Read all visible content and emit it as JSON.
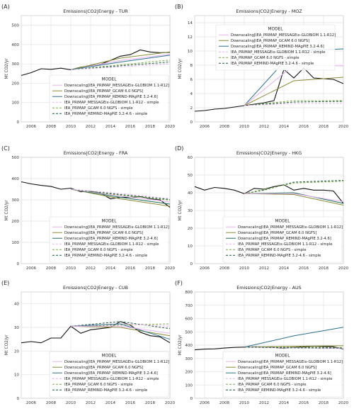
{
  "figure": {
    "ylabel": "Mt CO2/yr",
    "legend_title": "MODEL"
  },
  "colors": {
    "msg": "#e7b4f0",
    "gcam": "#8c8b3a",
    "remind": "#2e6f8e",
    "cube": "#1f6f5c",
    "iea_gcam": "#7fa84a",
    "iea_remind": "#1e5a3a",
    "hist": "#111111",
    "grid": "#e3e3e3",
    "frame": "#cfcfcf"
  },
  "chart_data": [
    {
      "type": "line",
      "panel_label": "(A)",
      "title": "Emissions|CO2|Energy - TUR",
      "xlim": [
        2005,
        2020
      ],
      "ylim": [
        0,
        550
      ],
      "xticks": [
        2006,
        2008,
        2010,
        2012,
        2014,
        2016,
        2018,
        2020
      ],
      "yticks": [
        0,
        100,
        200,
        300,
        400,
        500
      ],
      "legend": {
        "position": "bottom-right",
        "entries": [
          "Downscaling[IEA_PRIMAP_MESSAGEix-GLOBIOM 1.1-R12]",
          "Downscaling[IEA_PRIMAP_GCAM 6.0 NGFS]",
          "Downscaling[IEA_PRIMAP_REMIND-MAgPIE 3.2-4.6]",
          "IEA_PRIMAP_MESSAGEix-GLOBIOM 1.1-R12 - simple",
          "IEA_PRIMAP_GCAM 6.0 NGFS - simple",
          "IEA_PRIMAP_REMIND-MAgPIE 3.2-4.6 - simple"
        ],
        "series_keys": [
          "msg",
          "gcam",
          "remind",
          "msg",
          "iea_gcam",
          "iea_remind"
        ],
        "dashed": [
          false,
          false,
          false,
          true,
          true,
          true
        ]
      },
      "series": [
        {
          "key": "hist",
          "dash": false,
          "x": [
            2005,
            2006,
            2007,
            2008,
            2009,
            2010,
            2011,
            2012,
            2013,
            2014,
            2015,
            2016,
            2017,
            2018,
            2019,
            2020
          ],
          "y": [
            240,
            255,
            275,
            272,
            278,
            270,
            283,
            290,
            298,
            318,
            340,
            348,
            372,
            362,
            358,
            360
          ]
        },
        {
          "key": "msg",
          "dash": false,
          "x": [
            2010,
            2015,
            2020
          ],
          "y": [
            270,
            318,
            350
          ]
        },
        {
          "key": "gcam",
          "dash": false,
          "x": [
            2010,
            2015,
            2020
          ],
          "y": [
            270,
            330,
            362
          ]
        },
        {
          "key": "remind",
          "dash": false,
          "x": [
            2010,
            2015,
            2020
          ],
          "y": [
            270,
            310,
            345
          ]
        },
        {
          "key": "iea_gcam",
          "dash": true,
          "x": [
            2010,
            2015,
            2020
          ],
          "y": [
            270,
            295,
            320
          ]
        },
        {
          "key": "iea_remind",
          "dash": true,
          "x": [
            2010,
            2015,
            2020
          ],
          "y": [
            270,
            290,
            310
          ]
        },
        {
          "key": "msg",
          "dash": true,
          "x": [
            2010,
            2015,
            2020
          ],
          "y": [
            270,
            285,
            300
          ]
        }
      ]
    },
    {
      "type": "line",
      "panel_label": "(B)",
      "title": "Emissions|CO2|Energy - MOZ",
      "xlim": [
        2005,
        2020
      ],
      "ylim": [
        0,
        15
      ],
      "xticks": [
        2006,
        2008,
        2010,
        2012,
        2014,
        2016,
        2018,
        2020
      ],
      "yticks": [
        0,
        2,
        4,
        6,
        8,
        10,
        12,
        14
      ],
      "legend": {
        "position": "top-left",
        "entries": [
          "Downscaling[IEA_PRIMAP_MESSAGEix-GLOBIOM 1.1-R12]",
          "Downscaling[IEA_PRIMAP_GCAM 6.0 NGFS]",
          "Downscaling[IEA_PRIMAP_REMIND-MAgPIE 3.2-4.6]",
          "IEA_PRIMAP_MESSAGEix-GLOBIOM 1.1-R12 - simple",
          "IEA_PRIMAP_GCAM 6.0 NGFS - simple",
          "IEA_PRIMAP_REMIND-MAgPIE 3.2-4.6 - simple"
        ],
        "series_keys": [
          "msg",
          "gcam",
          "remind",
          "msg",
          "iea_gcam",
          "iea_remind"
        ],
        "dashed": [
          false,
          false,
          false,
          true,
          true,
          true
        ]
      },
      "series": [
        {
          "key": "hist",
          "dash": false,
          "x": [
            2005,
            2006,
            2007,
            2008,
            2009,
            2010,
            2011,
            2012,
            2013,
            2014,
            2015,
            2016,
            2017,
            2018,
            2019,
            2020
          ],
          "y": [
            1.5,
            1.6,
            1.8,
            1.9,
            2.1,
            2.3,
            2.5,
            2.7,
            3.0,
            7.4,
            6.2,
            7.6,
            6.2,
            6.1,
            6.0,
            5.4
          ]
        },
        {
          "key": "remind",
          "dash": false,
          "x": [
            2010,
            2015,
            2020
          ],
          "y": [
            2.3,
            10.0,
            10.3
          ]
        },
        {
          "key": "msg",
          "dash": false,
          "x": [
            2010,
            2015,
            2020
          ],
          "y": [
            2.3,
            8.0,
            7.9
          ]
        },
        {
          "key": "gcam",
          "dash": false,
          "x": [
            2010,
            2015,
            2020
          ],
          "y": [
            2.3,
            5.8,
            6.3
          ]
        },
        {
          "key": "iea_gcam",
          "dash": true,
          "x": [
            2010,
            2015,
            2020
          ],
          "y": [
            2.3,
            3.0,
            3.0
          ]
        },
        {
          "key": "iea_remind",
          "dash": true,
          "x": [
            2010,
            2015,
            2020
          ],
          "y": [
            2.3,
            2.8,
            2.9
          ]
        },
        {
          "key": "msg",
          "dash": true,
          "x": [
            2010,
            2015,
            2020
          ],
          "y": [
            2.3,
            2.6,
            2.6
          ]
        }
      ]
    },
    {
      "type": "line",
      "panel_label": "(C)",
      "title": "Emissions|CO2|Energy - FRA",
      "xlim": [
        2005,
        2020
      ],
      "ylim": [
        0,
        500
      ],
      "xticks": [
        2006,
        2008,
        2010,
        2012,
        2014,
        2016,
        2018,
        2020
      ],
      "yticks": [
        0,
        100,
        200,
        300,
        400,
        500
      ],
      "legend": {
        "position": "bottom-right",
        "entries": [
          "Downscaling[IEA_PRIMAP_MESSAGEix-GLOBIOM 1.1-R12]",
          "Downscaling[IEA_PRIMAP_GCAM 6.0 NGFS]",
          "Downscaling[IEA_PRIMAP_REMIND-MAgPIE 3.2-4.6]",
          "IEA_PRIMAP_MESSAGEix-GLOBIOM 1.1-R12 - simple",
          "IEA_PRIMAP_GCAM 6.0 NGFS - simple",
          "IEA_PRIMAP_REMIND-MAgPIE 3.2-4.6 - simple"
        ],
        "series_keys": [
          "msg",
          "gcam",
          "cube",
          "msg",
          "iea_gcam",
          "iea_remind"
        ],
        "dashed": [
          false,
          false,
          false,
          true,
          true,
          true
        ]
      },
      "series": [
        {
          "key": "hist",
          "dash": false,
          "x": [
            2005,
            2006,
            2007,
            2008,
            2009,
            2010,
            2011,
            2012,
            2013,
            2014,
            2015,
            2016,
            2017,
            2018,
            2019,
            2020
          ],
          "y": [
            385,
            375,
            368,
            363,
            350,
            355,
            338,
            340,
            332,
            305,
            312,
            312,
            315,
            305,
            300,
            265
          ]
        },
        {
          "key": "gcam",
          "dash": false,
          "x": [
            2010,
            2015,
            2020
          ],
          "y": [
            350,
            305,
            270
          ]
        },
        {
          "key": "cube",
          "dash": false,
          "x": [
            2010,
            2015,
            2020
          ],
          "y": [
            350,
            312,
            280
          ]
        },
        {
          "key": "msg",
          "dash": false,
          "x": [
            2010,
            2015,
            2020
          ],
          "y": [
            350,
            318,
            290
          ]
        },
        {
          "key": "iea_gcam",
          "dash": true,
          "x": [
            2010,
            2015,
            2020
          ],
          "y": [
            350,
            322,
            298
          ]
        },
        {
          "key": "iea_remind",
          "dash": true,
          "x": [
            2010,
            2015,
            2020
          ],
          "y": [
            350,
            325,
            302
          ]
        },
        {
          "key": "msg",
          "dash": true,
          "x": [
            2010,
            2015,
            2020
          ],
          "y": [
            350,
            330,
            306
          ]
        }
      ]
    },
    {
      "type": "line",
      "panel_label": "(D)",
      "title": "Emissions|CO2|Energy - HKG",
      "xlim": [
        2005,
        2020
      ],
      "ylim": [
        0,
        60
      ],
      "xticks": [
        2006,
        2008,
        2010,
        2012,
        2014,
        2016,
        2018,
        2020
      ],
      "yticks": [
        0,
        10,
        20,
        30,
        40,
        50,
        60
      ],
      "legend": {
        "position": "bottom-right",
        "entries": [
          "Downscaling[IEA_PRIMAP_MESSAGEix-GLOBIOM 1.1-R12]",
          "Downscaling[IEA_PRIMAP_GCAM 6.0 NGFS]",
          "Downscaling[IEA_PRIMAP_REMIND-MAgPIE 3.2-4.6]",
          "IEA_PRIMAP_MESSAGEix-GLOBIOM 1.1-R12 - simple",
          "IEA_PRIMAP_GCAM 6.0 NGFS - simple",
          "IEA_PRIMAP_REMIND-MAgPIE 3.2-4.6 - simple"
        ],
        "series_keys": [
          "msg",
          "gcam",
          "cube",
          "msg",
          "iea_gcam",
          "iea_remind"
        ],
        "dashed": [
          false,
          false,
          false,
          true,
          true,
          true
        ]
      },
      "series": [
        {
          "key": "hist",
          "dash": false,
          "x": [
            2005,
            2006,
            2007,
            2008,
            2009,
            2010,
            2011,
            2012,
            2013,
            2014,
            2015,
            2016,
            2017,
            2018,
            2019,
            2020
          ],
          "y": [
            43.5,
            41.5,
            43.0,
            42.5,
            41.5,
            39.5,
            42.5,
            42.0,
            43.5,
            44.5,
            41.5,
            42.5,
            41.5,
            41.5,
            41.0,
            34.0
          ]
        },
        {
          "key": "iea_remind",
          "dash": true,
          "x": [
            2010,
            2012,
            2015,
            2020
          ],
          "y": [
            39.5,
            41.5,
            46.0,
            47.0
          ]
        },
        {
          "key": "iea_gcam",
          "dash": true,
          "x": [
            2010,
            2015,
            2020
          ],
          "y": [
            39.5,
            45.5,
            46.5
          ]
        },
        {
          "key": "cube",
          "dash": false,
          "x": [
            2010,
            2015,
            2020
          ],
          "y": [
            39.5,
            40.0,
            34.0
          ]
        },
        {
          "key": "gcam",
          "dash": false,
          "x": [
            2010,
            2015,
            2020
          ],
          "y": [
            39.5,
            39.0,
            33.0
          ]
        },
        {
          "key": "msg",
          "dash": false,
          "x": [
            2010,
            2015,
            2020
          ],
          "y": [
            39.5,
            39.5,
            35.0
          ]
        }
      ]
    },
    {
      "type": "line",
      "panel_label": "(E)",
      "title": "Emissions|CO2|Energy - CUB",
      "xlim": [
        2005,
        2020
      ],
      "ylim": [
        0,
        45
      ],
      "xticks": [
        2006,
        2008,
        2010,
        2012,
        2014,
        2016,
        2018,
        2020
      ],
      "yticks": [
        0,
        10,
        20,
        30,
        40
      ],
      "legend": {
        "position": "bottom-right",
        "entries": [
          "Downscaling[IEA_PRIMAP_MESSAGEix-GLOBIOM 1.1-R12]",
          "Downscaling[IEA_PRIMAP_GCAM 6.0 NGFS]",
          "Downscaling[IEA_PRIMAP_REMIND-MAgPIE 3.2-4.6]",
          "IEA_PRIMAP_MESSAGEix-GLOBIOM 1.1-R12 - simple",
          "IEA_PRIMAP_GCAM 6.0 NGFS - simple",
          "IEA_PRIMAP_REMIND-MAgPIE 3.2-4.6 - simple"
        ],
        "series_keys": [
          "msg",
          "gcam",
          "remind",
          "msg",
          "iea_gcam",
          "iea_remind"
        ],
        "dashed": [
          false,
          false,
          false,
          true,
          true,
          true
        ]
      },
      "series": [
        {
          "key": "hist",
          "dash": false,
          "x": [
            2005,
            2006,
            2007,
            2008,
            2009,
            2010,
            2011,
            2012,
            2013,
            2014,
            2015,
            2016,
            2017,
            2018,
            2019,
            2020
          ],
          "y": [
            23.5,
            24.0,
            23.5,
            25.5,
            25.5,
            30.5,
            27.5,
            29.0,
            29.5,
            30.0,
            32.5,
            31.0,
            28.0,
            26.5,
            26.0,
            23.5
          ]
        },
        {
          "key": "iea_gcam",
          "dash": true,
          "x": [
            2010,
            2015,
            2020
          ],
          "y": [
            30.5,
            31.0,
            31.5
          ]
        },
        {
          "key": "iea_remind",
          "dash": true,
          "x": [
            2010,
            2015,
            2020
          ],
          "y": [
            30.5,
            32.5,
            29.5
          ]
        },
        {
          "key": "msg",
          "dash": true,
          "x": [
            2010,
            2015,
            2020
          ],
          "y": [
            30.5,
            31.5,
            30.5
          ]
        },
        {
          "key": "gcam",
          "dash": false,
          "x": [
            2010,
            2015,
            2020
          ],
          "y": [
            30.5,
            30.0,
            26.5
          ]
        },
        {
          "key": "remind",
          "dash": false,
          "x": [
            2010,
            2015,
            2020
          ],
          "y": [
            30.5,
            31.5,
            25.0
          ]
        },
        {
          "key": "msg",
          "dash": false,
          "x": [
            2010,
            2015,
            2020
          ],
          "y": [
            30.5,
            30.5,
            27.5
          ]
        }
      ]
    },
    {
      "type": "line",
      "panel_label": "(F)",
      "title": "Emissions|CO2|Energy - AUS",
      "xlim": [
        2005,
        2020
      ],
      "ylim": [
        0,
        800
      ],
      "xticks": [
        2006,
        2008,
        2010,
        2012,
        2014,
        2016,
        2018,
        2020
      ],
      "yticks": [
        0,
        100,
        200,
        300,
        400,
        500,
        600,
        700,
        800
      ],
      "legend": {
        "position": "bottom-right",
        "entries": [
          "Downscaling[IEA_PRIMAP_MESSAGEix-GLOBIOM 1.1-R12]",
          "Downscaling[IEA_PRIMAP_GCAM 6.0 NGFS]",
          "Downscaling[IEA_PRIMAP_REMIND-MAgPIE 3.2-4.6]",
          "IEA_PRIMAP_MESSAGEix-GLOBIOM 1.1-R12 - simple",
          "IEA_PRIMAP_GCAM 6.0 NGFS - simple",
          "IEA_PRIMAP_REMIND-MAgPIE 3.2-4.6 - simple"
        ],
        "series_keys": [
          "msg",
          "gcam",
          "remind",
          "msg",
          "iea_gcam",
          "iea_remind"
        ],
        "dashed": [
          false,
          false,
          false,
          true,
          true,
          true
        ]
      },
      "series": [
        {
          "key": "hist",
          "dash": false,
          "x": [
            2005,
            2006,
            2007,
            2008,
            2009,
            2010,
            2011,
            2012,
            2013,
            2014,
            2015,
            2016,
            2017,
            2018,
            2019,
            2020
          ],
          "y": [
            365,
            370,
            372,
            378,
            383,
            385,
            388,
            386,
            382,
            378,
            383,
            388,
            392,
            390,
            388,
            370
          ]
        },
        {
          "key": "remind",
          "dash": false,
          "x": [
            2010,
            2015,
            2020
          ],
          "y": [
            385,
            470,
            535
          ]
        },
        {
          "key": "gcam",
          "dash": false,
          "x": [
            2010,
            2015,
            2020
          ],
          "y": [
            385,
            392,
            395
          ]
        },
        {
          "key": "msg",
          "dash": false,
          "x": [
            2010,
            2015,
            2020
          ],
          "y": [
            385,
            380,
            375
          ]
        },
        {
          "key": "iea_gcam",
          "dash": true,
          "x": [
            2010,
            2015,
            2020
          ],
          "y": [
            385,
            385,
            382
          ]
        },
        {
          "key": "iea_remind",
          "dash": true,
          "x": [
            2010,
            2015,
            2020
          ],
          "y": [
            385,
            380,
            378
          ]
        }
      ]
    }
  ]
}
